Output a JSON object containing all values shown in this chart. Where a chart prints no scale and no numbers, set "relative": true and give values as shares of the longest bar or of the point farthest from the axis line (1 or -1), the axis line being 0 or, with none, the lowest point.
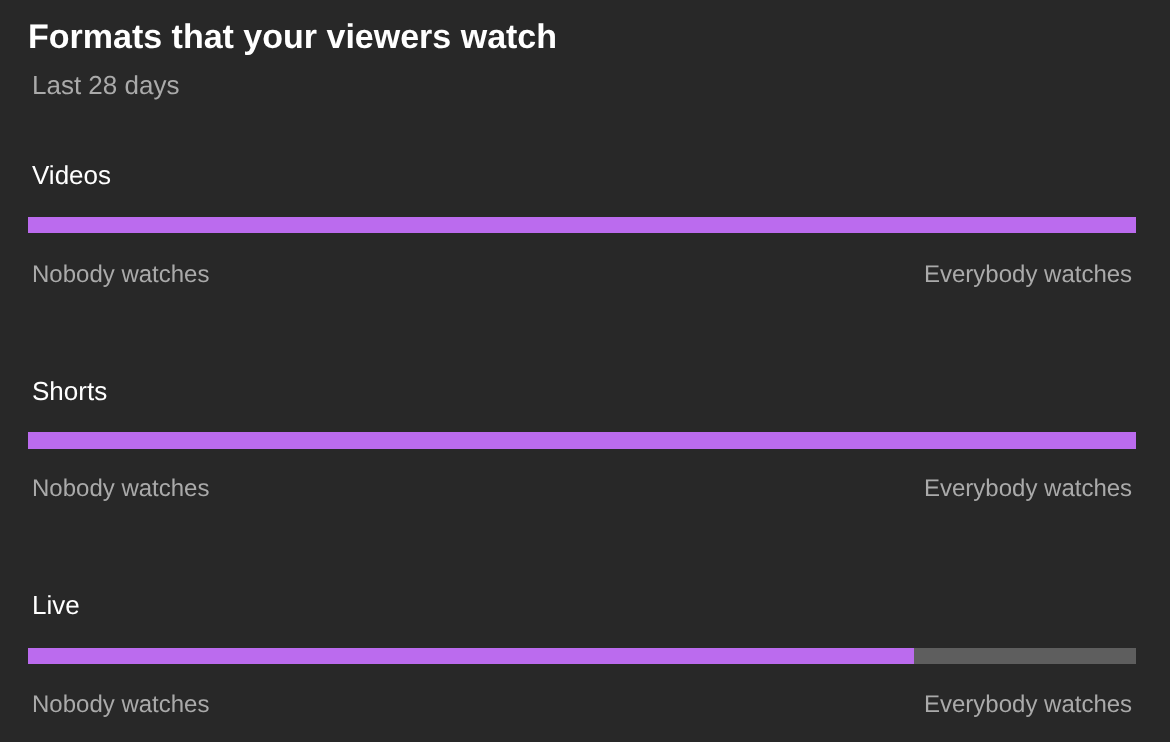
{
  "chart_data": {
    "type": "bar",
    "orientation": "horizontal",
    "stacked": true,
    "relative": true,
    "title": "Formats that your viewers watch",
    "subtitle": "Last 28 days",
    "categories": [
      "Videos",
      "Shorts",
      "Live"
    ],
    "series": [
      {
        "color": "#bb6bee",
        "values": [
          1,
          1,
          0.8
        ]
      },
      {
        "color": "#5e5e5e",
        "values": [
          0,
          0,
          0.2
        ]
      }
    ],
    "annotations": [
      "Nobody watches",
      "Everybody watches",
      "Nobody watches",
      "Everybody watches",
      "Nobody watches",
      "Everybody watches"
    ]
  }
}
